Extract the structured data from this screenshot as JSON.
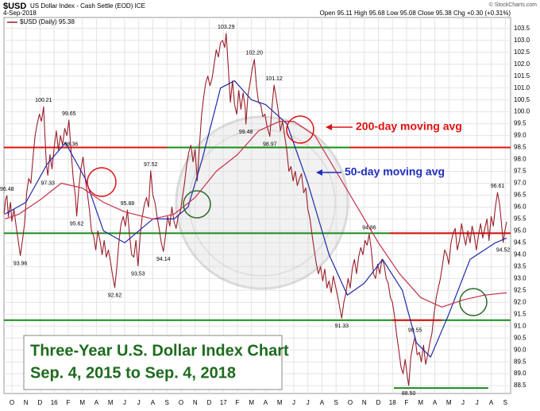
{
  "chart_data": {
    "type": "line",
    "symbol": "$USD",
    "title": "US Dollar Index - Cash Settle (EOD) ICE",
    "date": "4-Sep-2018",
    "source": "© StockCharts.com",
    "quote": "Open 95.11 High 95.68 Low 95.08 Close 95.38 Chg +0.30 (+0.31%)",
    "caption": [
      "Three-Year U.S. Dollar Index Chart",
      "Sep. 4, 2015 to Sep. 4, 2018"
    ],
    "annotations": [
      {
        "text": "200-day moving avg",
        "color": "#e01010"
      },
      {
        "text": "50-day moving avg",
        "color": "#2030c0"
      }
    ],
    "xlim": [
      -0.56,
      35.38
    ],
    "xticks": [
      {
        "value": 0,
        "label": "O"
      },
      {
        "value": 1,
        "label": "N"
      },
      {
        "value": 2,
        "label": "D"
      },
      {
        "value": 3,
        "label": "16"
      },
      {
        "value": 4,
        "label": "F"
      },
      {
        "value": 5,
        "label": "M"
      },
      {
        "value": 6,
        "label": "A"
      },
      {
        "value": 7,
        "label": "M"
      },
      {
        "value": 8,
        "label": "J"
      },
      {
        "value": 9,
        "label": "J"
      },
      {
        "value": 10,
        "label": "A"
      },
      {
        "value": 11,
        "label": "S"
      },
      {
        "value": 12,
        "label": "O"
      },
      {
        "value": 13,
        "label": "N"
      },
      {
        "value": 14,
        "label": "D"
      },
      {
        "value": 15,
        "label": "17"
      },
      {
        "value": 16,
        "label": "F"
      },
      {
        "value": 17,
        "label": "M"
      },
      {
        "value": 18,
        "label": "A"
      },
      {
        "value": 19,
        "label": "M"
      },
      {
        "value": 20,
        "label": "J"
      },
      {
        "value": 21,
        "label": "J"
      },
      {
        "value": 22,
        "label": "A"
      },
      {
        "value": 23,
        "label": "S"
      },
      {
        "value": 24,
        "label": "O"
      },
      {
        "value": 25,
        "label": "N"
      },
      {
        "value": 26,
        "label": "D"
      },
      {
        "value": 27,
        "label": "18"
      },
      {
        "value": 28,
        "label": "F"
      },
      {
        "value": 29,
        "label": "M"
      },
      {
        "value": 30,
        "label": "A"
      },
      {
        "value": 31,
        "label": "M"
      },
      {
        "value": 32,
        "label": "J"
      },
      {
        "value": 33,
        "label": "J"
      },
      {
        "value": 34,
        "label": "A"
      },
      {
        "value": 35,
        "label": "S"
      }
    ],
    "ylim": [
      88.17,
      103.96
    ],
    "yticks": [
      88.5,
      {
        "value": 89,
        "label": "89.0"
      },
      89.5,
      {
        "value": 90,
        "label": "90.0"
      },
      90.5,
      {
        "value": 91,
        "label": "91.0"
      },
      91.5,
      {
        "value": 92,
        "label": "92.0"
      },
      92.5,
      {
        "value": 93,
        "label": "93.0"
      },
      93.5,
      {
        "value": 94,
        "label": "94.0"
      },
      94.5,
      {
        "value": 95,
        "label": "95.0"
      },
      95.5,
      {
        "value": 96,
        "label": "96.0"
      },
      96.5,
      {
        "value": 97,
        "label": "97.0"
      },
      97.5,
      {
        "value": 98,
        "label": "98.0"
      },
      98.5,
      {
        "value": 99,
        "label": "99.0"
      },
      99.5,
      {
        "value": 100,
        "label": "100.0"
      },
      100.5,
      {
        "value": 101,
        "label": "101.0"
      },
      101.5,
      {
        "value": 102,
        "label": "102.0"
      },
      102.5,
      {
        "value": 103,
        "label": "103.0"
      },
      103.5
    ],
    "grid": true,
    "series": [
      {
        "name": "$USD (Daily) 95.38",
        "color": "#9a1f2a",
        "x": [
          -0.55,
          -0.45,
          -0.35,
          -0.25,
          -0.1,
          0,
          0.15,
          0.3,
          0.45,
          0.6,
          0.75,
          0.9,
          1.05,
          1.2,
          1.35,
          1.5,
          1.65,
          1.8,
          1.95,
          2.1,
          2.25,
          2.35,
          2.45,
          2.55,
          2.7,
          2.85,
          3,
          3.15,
          3.3,
          3.45,
          3.6,
          3.75,
          3.9,
          4.05,
          4.2,
          4.35,
          4.5,
          4.6,
          4.75,
          4.9,
          5.05,
          5.2,
          5.35,
          5.5,
          5.65,
          5.8,
          5.95,
          6.1,
          6.25,
          6.4,
          6.55,
          6.7,
          6.85,
          7,
          7.15,
          7.3,
          7.45,
          7.6,
          7.75,
          7.9,
          8.05,
          8.2,
          8.35,
          8.5,
          8.65,
          8.8,
          8.95,
          9.1,
          9.25,
          9.4,
          9.55,
          9.7,
          9.85,
          10,
          10.15,
          10.3,
          10.45,
          10.6,
          10.75,
          10.9,
          11.05,
          11.2,
          11.35,
          11.5,
          11.65,
          11.8,
          11.95,
          12.1,
          12.25,
          12.4,
          12.55,
          12.7,
          12.85,
          13,
          13.15,
          13.3,
          13.45,
          13.6,
          13.75,
          13.9,
          14.05,
          14.2,
          14.35,
          14.5,
          14.65,
          14.8,
          14.95,
          15.1,
          15.2,
          15.35,
          15.5,
          15.65,
          15.8,
          15.95,
          16.1,
          16.25,
          16.4,
          16.55,
          16.6,
          16.75,
          16.9,
          17.05,
          17.2,
          17.35,
          17.5,
          17.65,
          17.8,
          17.95,
          18.1,
          18.3,
          18.45,
          18.6,
          18.75,
          18.9,
          19.05,
          19.2,
          19.35,
          19.5,
          19.65,
          19.8,
          19.95,
          20.1,
          20.25,
          20.4,
          20.55,
          20.7,
          20.85,
          21,
          21.15,
          21.3,
          21.45,
          21.6,
          21.75,
          21.9,
          22.05,
          22.2,
          22.35,
          22.5,
          22.65,
          22.8,
          22.95,
          23.1,
          23.25,
          23.4,
          23.55,
          23.7,
          23.85,
          24,
          24.15,
          24.3,
          24.45,
          24.6,
          24.75,
          24.9,
          25.05,
          25.2,
          25.35,
          25.5,
          25.65,
          25.8,
          25.95,
          26.1,
          26.25,
          26.4,
          26.55,
          26.7,
          26.85,
          27,
          27.15,
          27.3,
          27.45,
          27.6,
          27.75,
          27.9,
          28.05,
          28.15,
          28.3,
          28.45,
          28.6,
          28.75,
          28.9,
          29.05,
          29.2,
          29.35,
          29.5,
          29.65,
          29.8,
          29.95,
          30.1,
          30.25,
          30.4,
          30.55,
          30.7,
          30.85,
          31,
          31.15,
          31.3,
          31.45,
          31.6,
          31.75,
          31.9,
          32.05,
          32.2,
          32.35,
          32.5,
          32.65,
          32.8,
          32.95,
          33.1,
          33.25,
          33.4,
          33.55,
          33.7,
          33.85,
          34,
          34.15,
          34.3,
          34.45,
          34.6,
          34.75,
          34.85,
          35,
          35.1
        ],
        "values": [
          95.7,
          96.3,
          96.48,
          95.6,
          96.2,
          95.4,
          95.9,
          95.2,
          94.6,
          93.96,
          94.6,
          95.3,
          96.6,
          97.2,
          97,
          98.1,
          99,
          99.5,
          99.9,
          99.6,
          100.21,
          98.9,
          97.8,
          97.33,
          98.2,
          97.6,
          98.5,
          99.2,
          98.4,
          99,
          98.6,
          99.3,
          99,
          99.65,
          98.36,
          97.2,
          96.5,
          95.62,
          96.8,
          97.6,
          98.1,
          97.2,
          96.6,
          95.9,
          95,
          94.8,
          94.2,
          95,
          94.6,
          94,
          94.6,
          93.9,
          94.2,
          93.7,
          93.1,
          92.62,
          93.5,
          94.6,
          95.3,
          95.6,
          95.2,
          95.88,
          94.8,
          94,
          93.9,
          94.6,
          93.53,
          94.8,
          95.6,
          96.1,
          96.4,
          96,
          97.52,
          96.5,
          96.2,
          95.6,
          95.1,
          94.5,
          94.14,
          94.8,
          95.6,
          95.2,
          96,
          95.4,
          95.1,
          95.6,
          95.8,
          96.4,
          97,
          97.8,
          98.3,
          98.6,
          97.9,
          98.4,
          97.1,
          98.5,
          99.8,
          100.6,
          101.2,
          101.5,
          101.1,
          101.4,
          102,
          102.6,
          102.3,
          102.9,
          103,
          102.7,
          103.29,
          101.9,
          100.4,
          101.3,
          100.3,
          99.9,
          100.9,
          100.1,
          100.8,
          100.2,
          99.48,
          100.7,
          101.2,
          101.8,
          102.2,
          101.1,
          100.4,
          100.3,
          99.8,
          99.9,
          99.4,
          98.97,
          100.2,
          101.12,
          100.6,
          100,
          99.2,
          99.6,
          99,
          98.4,
          97.5,
          97.7,
          97.1,
          97.5,
          96.9,
          97.2,
          97.4,
          96.6,
          96.8,
          95.9,
          95.5,
          94.8,
          94.2,
          93.6,
          93.2,
          93.5,
          92.9,
          93.4,
          92.6,
          92.9,
          92.4,
          93.1,
          92.7,
          92.3,
          91.8,
          91.33,
          92,
          92.4,
          93,
          92.6,
          93.4,
          93.8,
          93.2,
          93.9,
          94.3,
          94,
          94.6,
          94.4,
          94.86,
          94.2,
          93.2,
          93,
          93.6,
          93.2,
          93.8,
          93.6,
          93,
          92.8,
          92.2,
          92,
          91.4,
          90.6,
          90,
          89.3,
          89,
          89.6,
          88.9,
          88.5,
          89.7,
          90.2,
          90.55,
          89.8,
          89.9,
          89.5,
          90.2,
          89.4,
          89.8,
          90.3,
          90.7,
          91.5,
          92.2,
          92.6,
          93,
          93.6,
          94.2,
          94,
          93.6,
          94.5,
          94.9,
          95.1,
          94.2,
          94.6,
          95.3,
          94.8,
          94.4,
          95,
          94.5,
          95.2,
          94.8,
          94.2,
          94.8,
          95.3,
          94.7,
          95.1,
          95.5,
          94.6,
          95.6,
          95.2,
          96,
          96.61,
          96.1,
          95.2,
          94.52,
          95.1,
          95.38
        ]
      },
      {
        "name": "50-day moving avg",
        "color": "#1f2aa8",
        "x": [
          -0.5,
          1,
          2.5,
          3.8,
          5.2,
          6.5,
          8,
          10,
          11.5,
          12.5,
          13.5,
          14.8,
          15.8,
          17,
          18,
          19.5,
          21,
          22.5,
          23.8,
          25,
          26.3,
          27.7,
          28.7,
          29.7,
          31,
          32.5,
          34.3,
          35.1
        ],
        "values": [
          95.7,
          96.2,
          97.8,
          98.7,
          97.2,
          95,
          94.5,
          95.5,
          95.5,
          96,
          98,
          101,
          101.3,
          100.5,
          100.3,
          99.5,
          97,
          94,
          92.3,
          92.8,
          93.8,
          92.5,
          90.3,
          89.7,
          91.5,
          93.8,
          94.5,
          94.7
        ]
      },
      {
        "name": "200-day moving avg",
        "color": "#c8304a",
        "x": [
          -0.5,
          0.5,
          2,
          3.5,
          5,
          6.5,
          8,
          10,
          11.5,
          13,
          14.5,
          16,
          17.5,
          19,
          20,
          21.5,
          23,
          24.5,
          26,
          27.5,
          29,
          30.5,
          32,
          33.5,
          35.1
        ],
        "values": [
          95.5,
          95.7,
          96.3,
          97,
          96.8,
          96.2,
          95.8,
          95.5,
          95.7,
          96.4,
          97.5,
          98.2,
          99.2,
          99.6,
          99.6,
          99,
          97.5,
          96,
          94.5,
          93.2,
          92.2,
          91.8,
          92.1,
          92.3,
          92.4
        ]
      }
    ],
    "reference_lines": [
      {
        "value": 98.5,
        "color": "#e01010",
        "from": -0.56,
        "to": 35.38
      },
      {
        "value": 98.5,
        "color": "#1a8a1a",
        "from": 11.0,
        "to": 24.0
      },
      {
        "value": 94.9,
        "color": "#1a8a1a",
        "from": -0.56,
        "to": 35.38
      },
      {
        "value": 94.9,
        "color": "#e01010",
        "from": 26.8,
        "to": 35.38
      },
      {
        "value": 91.25,
        "color": "#1a8a1a",
        "from": -0.56,
        "to": 35.38
      },
      {
        "value": 91.25,
        "color": "#e01010",
        "from": 27.0,
        "to": 30.5
      },
      {
        "value": 88.4,
        "color": "#1a8a1a",
        "from": 27.1,
        "to": 33.8
      }
    ],
    "point_labels": [
      {
        "x": -0.35,
        "value": 96.48
      },
      {
        "x": 0.6,
        "value": 93.96
      },
      {
        "x": 2.25,
        "value": 100.21
      },
      {
        "x": 2.55,
        "value": 97.33
      },
      {
        "x": 4.05,
        "value": 99.65
      },
      {
        "x": 4.2,
        "value": 98.36
      },
      {
        "x": 4.6,
        "value": 95.62
      },
      {
        "x": 7.3,
        "value": 92.62
      },
      {
        "x": 8.2,
        "value": 95.88
      },
      {
        "x": 8.95,
        "value": 93.53
      },
      {
        "x": 9.85,
        "value": 97.52
      },
      {
        "x": 10.75,
        "value": 94.14
      },
      {
        "x": 15.2,
        "value": 103.29
      },
      {
        "x": 16.6,
        "value": 99.48
      },
      {
        "x": 17.2,
        "value": 102.2,
        "label": "102.20"
      },
      {
        "x": 18.3,
        "value": 98.97
      },
      {
        "x": 18.6,
        "value": 101.12
      },
      {
        "x": 23.4,
        "value": 91.33
      },
      {
        "x": 25.35,
        "value": 94.86
      },
      {
        "x": 28.15,
        "value": 88.5,
        "label": "88.50"
      },
      {
        "x": 28.6,
        "value": 90.55
      },
      {
        "x": 34.45,
        "value": 96.61
      },
      {
        "x": 34.85,
        "value": 94.52
      }
    ]
  }
}
